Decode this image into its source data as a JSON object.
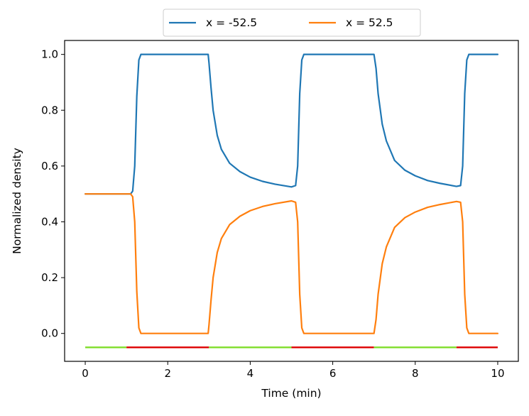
{
  "chart_data": {
    "type": "line",
    "xlabel": "Time (min)",
    "ylabel": "Normalized density",
    "xlim": [
      -0.5,
      10.5
    ],
    "ylim": [
      -0.1,
      1.05
    ],
    "xticks": [
      0,
      2,
      4,
      6,
      8,
      10
    ],
    "yticks": [
      0.0,
      0.2,
      0.4,
      0.6,
      0.8,
      1.0
    ],
    "x_tick_labels": [
      "0",
      "2",
      "4",
      "6",
      "8",
      "10"
    ],
    "y_tick_labels": [
      "0.0",
      "0.2",
      "0.4",
      "0.6",
      "0.8",
      "1.0"
    ],
    "grid": false,
    "legend_position": "top-center, above plot",
    "series": [
      {
        "name": "x = -52.5",
        "color": "#1f77b4",
        "x": [
          0,
          1.1,
          1.15,
          1.2,
          1.25,
          1.3,
          1.35,
          1.4,
          2.98,
          3.0,
          3.05,
          3.1,
          3.2,
          3.3,
          3.5,
          3.75,
          4.0,
          4.3,
          4.6,
          5.0,
          5.1,
          5.15,
          5.2,
          5.25,
          5.3,
          5.35,
          5.4,
          7.0,
          7.05,
          7.1,
          7.2,
          7.3,
          7.5,
          7.75,
          8.0,
          8.3,
          8.6,
          9.0,
          9.1,
          9.15,
          9.2,
          9.25,
          9.3,
          9.35,
          9.4,
          10.0
        ],
        "values": [
          0.5,
          0.5,
          0.51,
          0.6,
          0.85,
          0.98,
          1.0,
          1.0,
          1.0,
          0.97,
          0.88,
          0.8,
          0.71,
          0.66,
          0.61,
          0.58,
          0.56,
          0.545,
          0.535,
          0.525,
          0.53,
          0.6,
          0.86,
          0.98,
          1.0,
          1.0,
          1.0,
          1.0,
          0.95,
          0.86,
          0.75,
          0.69,
          0.62,
          0.585,
          0.565,
          0.548,
          0.538,
          0.527,
          0.53,
          0.6,
          0.86,
          0.98,
          1.0,
          1.0,
          1.0,
          1.0
        ]
      },
      {
        "name": "x = 52.5",
        "color": "#ff7f0e",
        "x": [
          0,
          1.1,
          1.15,
          1.2,
          1.25,
          1.3,
          1.35,
          1.4,
          2.98,
          3.0,
          3.05,
          3.1,
          3.2,
          3.3,
          3.5,
          3.75,
          4.0,
          4.3,
          4.6,
          5.0,
          5.1,
          5.15,
          5.2,
          5.25,
          5.3,
          5.35,
          5.4,
          7.0,
          7.05,
          7.1,
          7.2,
          7.3,
          7.5,
          7.75,
          8.0,
          8.3,
          8.6,
          9.0,
          9.1,
          9.15,
          9.2,
          9.25,
          9.3,
          9.35,
          9.4,
          10.0
        ],
        "values": [
          0.5,
          0.5,
          0.49,
          0.4,
          0.15,
          0.02,
          0.0,
          0.0,
          0.0,
          0.03,
          0.12,
          0.2,
          0.29,
          0.34,
          0.39,
          0.42,
          0.44,
          0.455,
          0.465,
          0.475,
          0.47,
          0.4,
          0.14,
          0.02,
          0.0,
          0.0,
          0.0,
          0.0,
          0.05,
          0.14,
          0.25,
          0.31,
          0.38,
          0.415,
          0.435,
          0.452,
          0.462,
          0.473,
          0.47,
          0.4,
          0.14,
          0.02,
          0.0,
          0.0,
          0.0,
          0.0
        ]
      }
    ],
    "indicator_bar": {
      "y": -0.05,
      "segments": [
        {
          "x": [
            0,
            1
          ],
          "color": "#7fdd2a"
        },
        {
          "x": [
            1,
            3
          ],
          "color": "#dd0000"
        },
        {
          "x": [
            3,
            5
          ],
          "color": "#7fdd2a"
        },
        {
          "x": [
            5,
            7
          ],
          "color": "#dd0000"
        },
        {
          "x": [
            7,
            9
          ],
          "color": "#7fdd2a"
        },
        {
          "x": [
            9,
            10
          ],
          "color": "#dd0000"
        }
      ]
    }
  }
}
